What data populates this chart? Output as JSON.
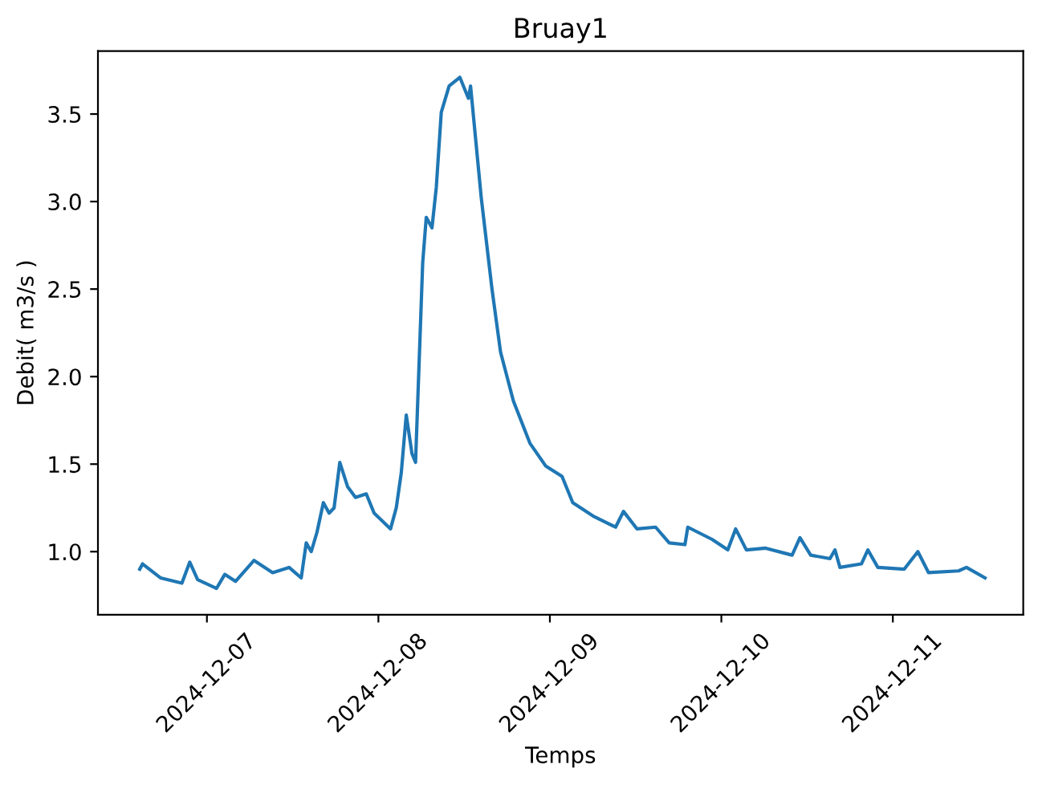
{
  "chart_data": {
    "type": "line",
    "title": "Bruay1",
    "xlabel": "Temps",
    "ylabel": "Debit( m3/s )",
    "x": [
      "2024-12-06T14:36",
      "2024-12-06T15:00",
      "2024-12-06T17:30",
      "2024-12-06T20:30",
      "2024-12-06T21:36",
      "2024-12-06T22:42",
      "2024-12-07T01:21",
      "2024-12-07T02:30",
      "2024-12-07T04:00",
      "2024-12-07T06:36",
      "2024-12-07T09:12",
      "2024-12-07T11:30",
      "2024-12-07T13:12",
      "2024-12-07T13:54",
      "2024-12-07T14:36",
      "2024-12-07T15:24",
      "2024-12-07T16:18",
      "2024-12-07T17:06",
      "2024-12-07T17:48",
      "2024-12-07T18:36",
      "2024-12-07T19:42",
      "2024-12-07T20:48",
      "2024-12-07T22:18",
      "2024-12-07T23:24",
      "2024-12-08T01:42",
      "2024-12-08T02:30",
      "2024-12-08T03:12",
      "2024-12-08T03:54",
      "2024-12-08T04:42",
      "2024-12-08T05:12",
      "2024-12-08T06:12",
      "2024-12-08T06:42",
      "2024-12-08T07:30",
      "2024-12-08T08:06",
      "2024-12-08T08:48",
      "2024-12-08T09:54",
      "2024-12-08T11:24",
      "2024-12-08T12:36",
      "2024-12-08T12:54",
      "2024-12-08T14:24",
      "2024-12-08T15:54",
      "2024-12-08T17:06",
      "2024-12-08T18:54",
      "2024-12-08T21:12",
      "2024-12-08T23:24",
      "2024-12-09T01:42",
      "2024-12-09T03:12",
      "2024-12-09T06:12",
      "2024-12-09T09:12",
      "2024-12-09T10:18",
      "2024-12-09T12:12",
      "2024-12-09T14:48",
      "2024-12-09T16:42",
      "2024-12-09T18:54",
      "2024-12-09T19:18",
      "2024-12-09T22:42",
      "2024-12-10T00:54",
      "2024-12-10T02:00",
      "2024-12-10T03:30",
      "2024-12-10T06:12",
      "2024-12-10T09:54",
      "2024-12-10T11:00",
      "2024-12-10T12:30",
      "2024-12-10T15:12",
      "2024-12-10T15:54",
      "2024-12-10T16:36",
      "2024-12-10T19:36",
      "2024-12-10T20:30",
      "2024-12-10T21:54",
      "2024-12-11T01:36",
      "2024-12-11T03:30",
      "2024-12-11T05:00",
      "2024-12-11T09:12",
      "2024-12-11T10:18",
      "2024-12-11T12:54"
    ],
    "series": [
      {
        "color": "#1f77b4",
        "values": [
          0.9,
          0.93,
          0.85,
          0.82,
          0.94,
          0.84,
          0.79,
          0.87,
          0.83,
          0.95,
          0.88,
          0.91,
          0.85,
          1.05,
          1.0,
          1.11,
          1.28,
          1.22,
          1.25,
          1.51,
          1.37,
          1.31,
          1.33,
          1.22,
          1.13,
          1.25,
          1.45,
          1.78,
          1.56,
          1.51,
          2.65,
          2.91,
          2.85,
          3.08,
          3.51,
          3.66,
          3.71,
          3.59,
          3.66,
          3.02,
          2.5,
          2.14,
          1.86,
          1.62,
          1.49,
          1.43,
          1.28,
          1.2,
          1.14,
          1.23,
          1.13,
          1.14,
          1.05,
          1.04,
          1.14,
          1.07,
          1.01,
          1.13,
          1.01,
          1.02,
          0.98,
          1.08,
          0.98,
          0.96,
          1.01,
          0.91,
          0.93,
          1.01,
          0.91,
          0.9,
          1.0,
          0.88,
          0.89,
          0.91,
          0.85
        ]
      }
    ],
    "xlim": [
      "2024-12-06T08:45",
      "2024-12-11T18:15"
    ],
    "xticks": [
      "2024-12-07",
      "2024-12-08",
      "2024-12-09",
      "2024-12-10",
      "2024-12-11"
    ],
    "ylim": [
      0.64,
      3.86
    ],
    "yticks": [
      {
        "value": 1.0,
        "label": "1.0"
      },
      {
        "value": 1.5,
        "label": "1.5"
      },
      {
        "value": 2.0,
        "label": "2.0"
      },
      {
        "value": 2.5,
        "label": "2.5"
      },
      {
        "value": 3.0,
        "label": "3.0"
      },
      {
        "value": 3.5,
        "label": "3.5"
      }
    ],
    "grid": false
  }
}
